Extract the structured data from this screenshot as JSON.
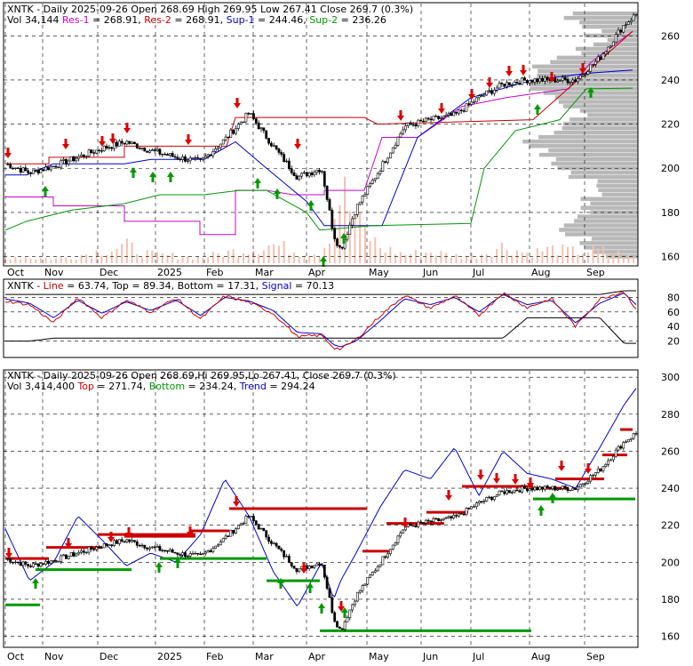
{
  "colors": {
    "res1": "#cc00cc",
    "res2": "#cc0000",
    "sup1": "#0000cc",
    "sup2": "#009900",
    "line": "#cc0000",
    "top": "#cc0000",
    "bottom": "#009900",
    "signal": "#0000cc",
    "trend": "#0000cc",
    "volume_bar": "#f4c0b0",
    "vp_bar": "#b8b8b8",
    "arrow_down": "#dd0000",
    "arrow_up": "#009900"
  },
  "months": [
    "Oct",
    "Nov",
    "Dec",
    "2025",
    "Feb",
    "Mar",
    "Apr",
    "May",
    "Jun",
    "Jul",
    "Aug",
    "Sep"
  ],
  "panel1": {
    "legend": [
      {
        "text": "XNTK - Daily 2025-09-26 Open 268.69  High 269.95  Low 267.41  Close 269.7 (0.3%)",
        "color": "#000000"
      }
    ],
    "legend2": [
      {
        "text": "Vol 34,144 ",
        "color": "#000000"
      },
      {
        "text": "Res-1",
        "color": "#cc00cc"
      },
      {
        "text": " = 268.91, ",
        "color": "#000000"
      },
      {
        "text": "Res-2",
        "color": "#cc0000"
      },
      {
        "text": " = 268.91, ",
        "color": "#000000"
      },
      {
        "text": "Sup-1",
        "color": "#0000cc"
      },
      {
        "text": " = 244.46, ",
        "color": "#000000"
      },
      {
        "text": "Sup-2",
        "color": "#009900"
      },
      {
        "text": " = 236.26",
        "color": "#000000"
      }
    ],
    "yticks": [
      "260",
      "240",
      "220",
      "200",
      "180",
      "160"
    ]
  },
  "panel2": {
    "legend": [
      {
        "text": "XNTK - ",
        "color": "#000000"
      },
      {
        "text": "Line",
        "color": "#cc0000"
      },
      {
        "text": " = 63.74, ",
        "color": "#000000"
      },
      {
        "text": "Top",
        "color": "#000000"
      },
      {
        "text": " = 89.34, ",
        "color": "#000000"
      },
      {
        "text": "Bottom",
        "color": "#000000"
      },
      {
        "text": " = 17.31, ",
        "color": "#000000"
      },
      {
        "text": "Signal",
        "color": "#0000cc"
      },
      {
        "text": " = 70.13",
        "color": "#000000"
      }
    ],
    "yticks": [
      "80",
      "60",
      "40",
      "20"
    ]
  },
  "panel3": {
    "legend": [
      {
        "text": "XNTK - Daily 2025-09-26 Open 268.69,Hi 269.95,Lo 267.41, Close 269.7 (0.3%)",
        "color": "#000000"
      }
    ],
    "legend2": [
      {
        "text": "Vol 3,414,400 ",
        "color": "#000000"
      },
      {
        "text": "Top",
        "color": "#cc0000"
      },
      {
        "text": " = 271.74, ",
        "color": "#000000"
      },
      {
        "text": "Bottom",
        "color": "#009900"
      },
      {
        "text": " = 234.24, ",
        "color": "#000000"
      },
      {
        "text": "Trend",
        "color": "#0000cc"
      },
      {
        "text": " = 294.24",
        "color": "#000000"
      }
    ],
    "yticks": [
      "300",
      "280",
      "260",
      "240",
      "220",
      "200",
      "180",
      "160"
    ]
  },
  "chart_data": [
    {
      "type": "line",
      "title": "XNTK - Daily 2025-09-26",
      "x": [
        "2024-09-26",
        "2024-10-10",
        "2024-10-24",
        "2024-11-07",
        "2024-11-21",
        "2024-12-05",
        "2024-12-19",
        "2025-01-03",
        "2025-01-17",
        "2025-01-31",
        "2025-02-14",
        "2025-02-28",
        "2025-03-14",
        "2025-03-28",
        "2025-04-04",
        "2025-04-08",
        "2025-04-17",
        "2025-05-01",
        "2025-05-15",
        "2025-05-30",
        "2025-06-13",
        "2025-06-27",
        "2025-07-11",
        "2025-07-25",
        "2025-08-08",
        "2025-08-22",
        "2025-09-05",
        "2025-09-19",
        "2025-09-26"
      ],
      "series": [
        {
          "values": [
            202,
            198,
            201,
            205,
            209,
            212,
            208,
            205,
            203,
            213,
            225,
            210,
            196,
            200,
            170,
            163,
            182,
            200,
            219,
            222,
            224,
            232,
            238,
            240,
            240,
            240,
            250,
            265,
            269.7
          ]
        }
      ],
      "ylim": [
        157,
        273
      ],
      "volume_values": [
        0.5,
        0.4,
        0.3,
        0.5,
        0.9,
        1.2,
        0.6,
        0.5,
        0.4,
        0.7,
        1.0,
        1.3,
        0.8,
        0.7,
        3.1,
        5.3,
        2.8,
        1.1,
        0.6,
        0.8,
        0.5,
        0.6,
        1.2,
        0.7,
        1.0,
        0.8,
        0.9,
        0.6,
        0.3
      ],
      "resistance_sup": {
        "Res-1": 268.91,
        "Res-2": 268.91,
        "Sup-1": 244.46,
        "Sup-2": 236.26
      }
    },
    {
      "type": "line",
      "ylim": [
        0,
        100
      ],
      "series": [
        {
          "name": "Line",
          "values": [
            75,
            70,
            45,
            80,
            52,
            76,
            60,
            79,
            50,
            82,
            73,
            58,
            26,
            28,
            11,
            9,
            22,
            55,
            83,
            65,
            82,
            55,
            86,
            66,
            78,
            40,
            78,
            88,
            64
          ]
        },
        {
          "name": "Signal",
          "values": [
            78,
            72,
            52,
            76,
            58,
            74,
            62,
            76,
            55,
            80,
            75,
            62,
            32,
            30,
            15,
            12,
            20,
            48,
            78,
            70,
            80,
            60,
            84,
            70,
            76,
            45,
            72,
            86,
            70
          ]
        },
        {
          "name": "Top",
          "values": [
            84,
            84,
            84,
            84,
            84,
            84,
            84,
            84,
            84,
            84,
            84,
            84,
            84,
            84,
            84,
            84,
            84,
            84,
            84,
            84,
            84,
            84,
            84,
            84,
            84,
            84,
            84,
            89,
            89
          ]
        },
        {
          "name": "Bottom",
          "values": [
            20,
            20,
            24,
            24,
            24,
            24,
            24,
            24,
            24,
            24,
            24,
            24,
            24,
            24,
            24,
            24,
            24,
            24,
            24,
            24,
            24,
            24,
            24,
            52,
            52,
            52,
            52,
            17,
            17
          ]
        }
      ]
    },
    {
      "type": "line",
      "ylim": [
        155,
        302
      ],
      "series": [
        {
          "name": "Trend",
          "values": [
            218,
            190,
            200,
            225,
            212,
            198,
            205,
            200,
            215,
            245,
            225,
            195,
            176,
            200,
            180,
            190,
            205,
            230,
            250,
            245,
            262,
            236,
            260,
            248,
            245,
            240,
            262,
            285,
            294
          ]
        }
      ],
      "tops": [
        202,
        202,
        208,
        214,
        214,
        215,
        229,
        229,
        229,
        206,
        219,
        228,
        241,
        240,
        245,
        258,
        271.74
      ],
      "bottoms": [
        178,
        196,
        196,
        202,
        202,
        190,
        190,
        163,
        163,
        234.24,
        234.24
      ]
    }
  ]
}
